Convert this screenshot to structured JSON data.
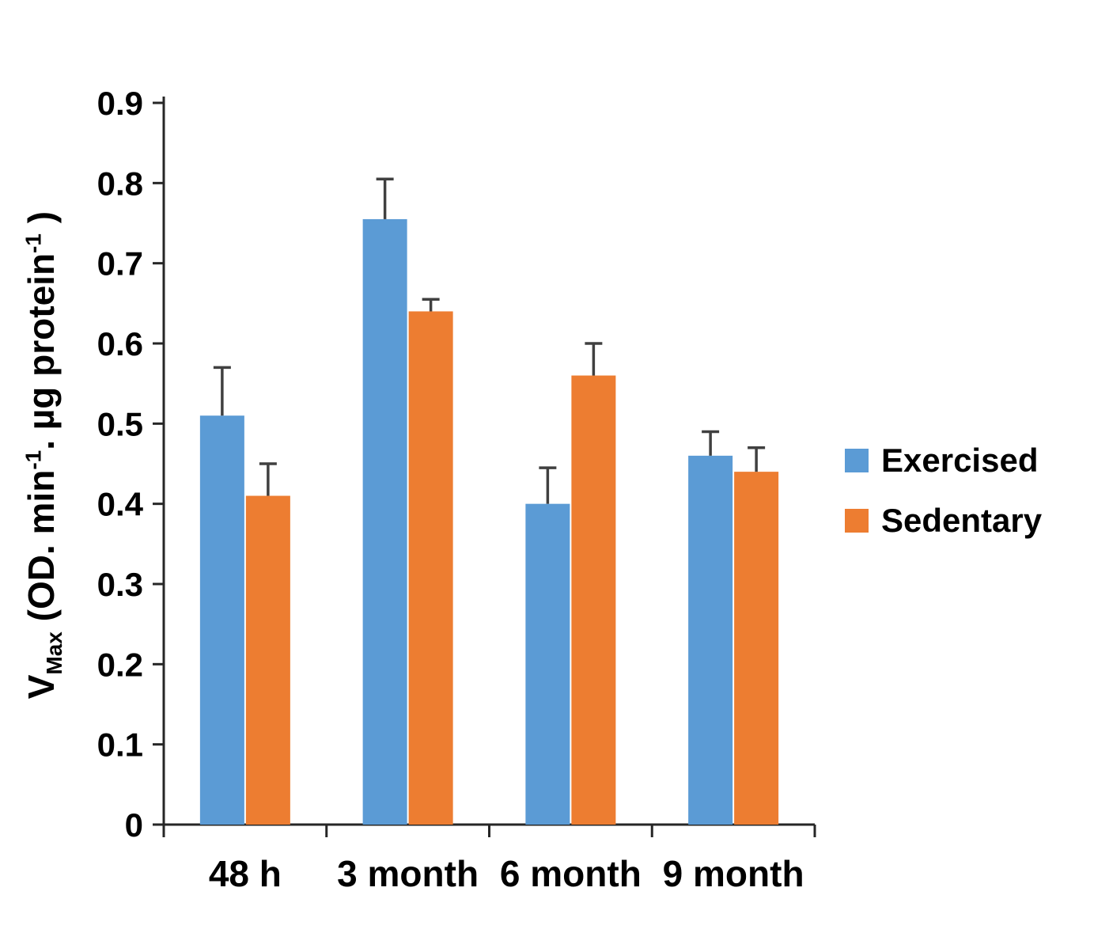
{
  "chart_data": {
    "type": "bar",
    "title": "",
    "categories": [
      "48 h",
      "3 month",
      "6 month",
      "9 month"
    ],
    "series": [
      {
        "name": "Exercised",
        "color": "#5B9BD5",
        "values": [
          0.51,
          0.755,
          0.4,
          0.46
        ],
        "errors_plus": [
          0.06,
          0.05,
          0.045,
          0.03
        ]
      },
      {
        "name": "Sedentary",
        "color": "#ED7D31",
        "values": [
          0.41,
          0.64,
          0.56,
          0.44
        ],
        "errors_plus": [
          0.04,
          0.015,
          0.04,
          0.03
        ]
      }
    ],
    "ylabel_plain": "VMax (OD. min-1. ug protein-1 )",
    "ylabel_rich": [
      {
        "text": "V",
        "style": "normal"
      },
      {
        "text": "Max",
        "style": "sub"
      },
      {
        "text": " (OD. min",
        "style": "normal"
      },
      {
        "text": "-1",
        "style": "sup"
      },
      {
        "text": ". µg protein",
        "style": "normal"
      },
      {
        "text": "-1",
        "style": "sup"
      },
      {
        "text": " )",
        "style": "normal"
      }
    ],
    "xlabel": "",
    "ylim": [
      0,
      0.9
    ],
    "ytick_step": 0.1,
    "ytick_labels": [
      "0",
      "0.1",
      "0.2",
      "0.3",
      "0.4",
      "0.5",
      "0.6",
      "0.7",
      "0.8",
      "0.9"
    ],
    "grid": false,
    "legend_position": "right",
    "axis_color": "#262626",
    "error_bar_color": "#404040",
    "tick_label_color": "#000000"
  }
}
